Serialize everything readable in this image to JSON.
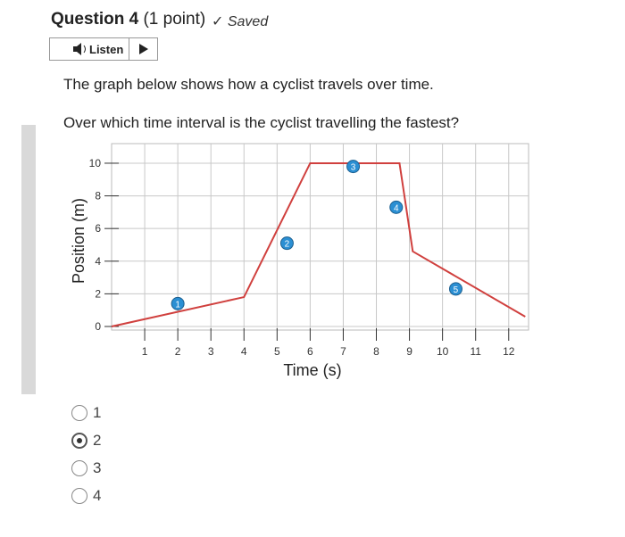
{
  "question": {
    "title": "Question 4",
    "points": "(1 point)",
    "status": "Saved"
  },
  "listen": "Listen",
  "prompt": [
    "The graph below shows how a cyclist travels over time.",
    "Over which time interval is the cyclist travelling the fastest?"
  ],
  "chart_data": {
    "type": "line",
    "x_label": "Time (s)",
    "y_label": "Position (m)",
    "x": [
      0,
      4,
      6,
      8.7,
      9.1,
      12.5
    ],
    "series": [
      {
        "color": "#d0403e",
        "values": [
          0,
          1.8,
          10,
          10,
          4.6,
          0.6
        ]
      }
    ],
    "xlim": [
      0,
      12.6
    ],
    "ylim": [
      0,
      11.2
    ],
    "xticks": [
      1,
      2,
      3,
      4,
      5,
      6,
      7,
      8,
      9,
      10,
      11,
      12
    ],
    "yticks": [
      0,
      2,
      4,
      6,
      8,
      10
    ],
    "grid": true,
    "annotations": [
      {
        "text": "1",
        "x": 2,
        "y": 1.4
      },
      {
        "text": "2",
        "x": 5.3,
        "y": 5.1
      },
      {
        "text": "3",
        "x": 7.3,
        "y": 9.8
      },
      {
        "text": "4",
        "x": 8.6,
        "y": 7.3
      },
      {
        "text": "5",
        "x": 10.4,
        "y": 2.3
      }
    ]
  },
  "options": [
    "1",
    "2",
    "3",
    "4"
  ],
  "selected": 1
}
